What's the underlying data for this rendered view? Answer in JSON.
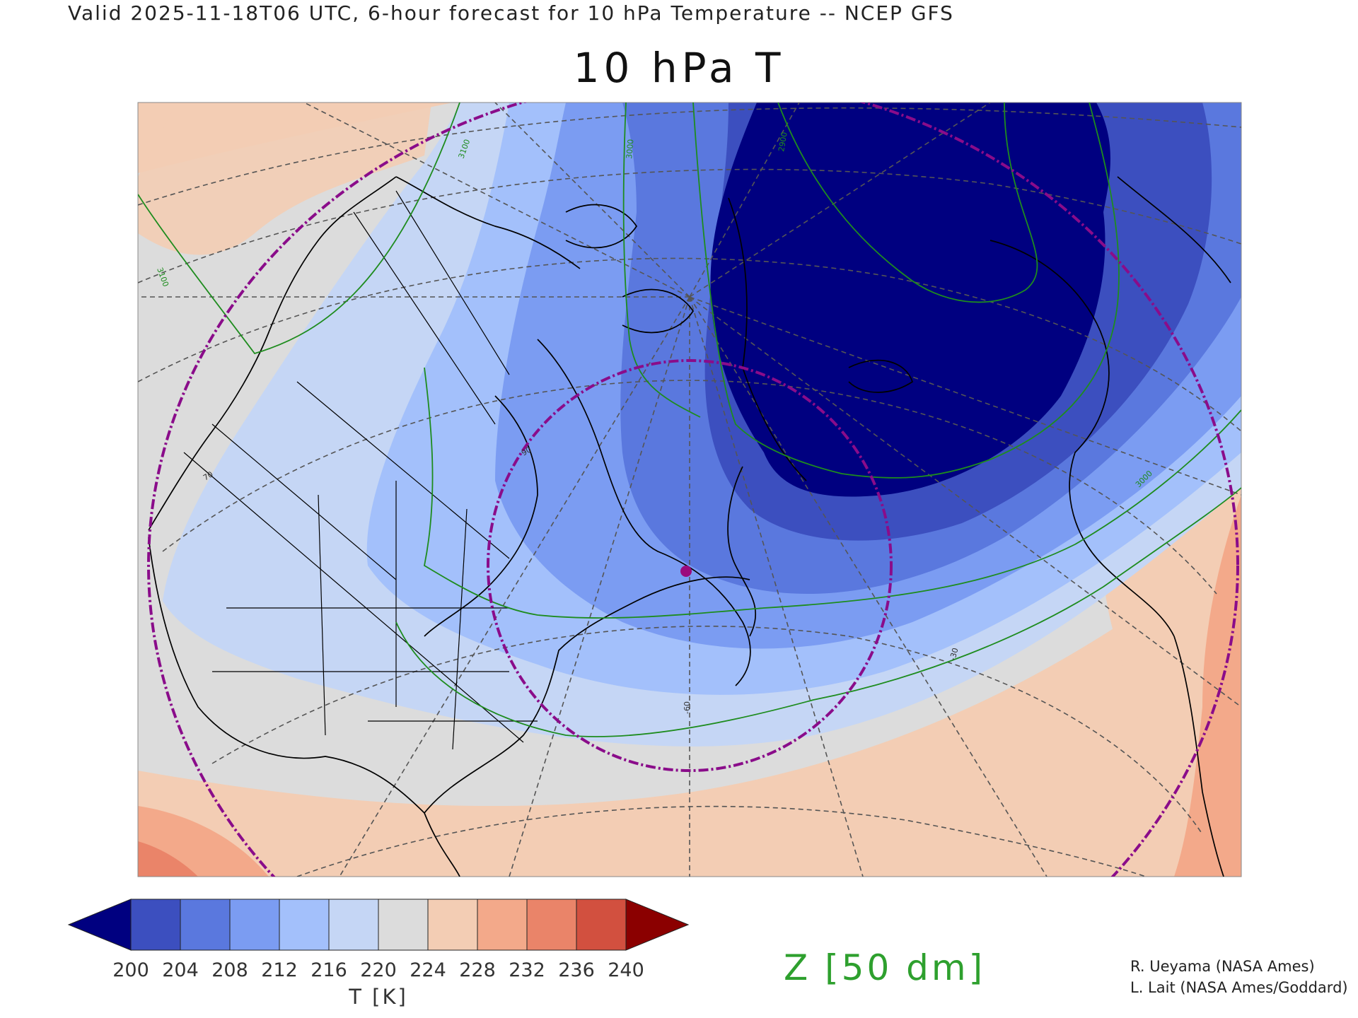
{
  "header": {
    "valid_line": "Valid 2025-11-18T06 UTC, 6-hour forecast for 10 hPa Temperature -- NCEP GFS",
    "title": "10 hPa T"
  },
  "map": {
    "projection": "polar stereographic (North America / North Atlantic)",
    "field": "10 hPa temperature (filled) with 10 hPa geopotential height contours",
    "contour_labels": [
      "3100",
      "3000",
      "2900",
      "3100",
      "3000",
      "-30",
      "-60",
      "70",
      "90"
    ],
    "marker": "purple dot over Labrador/Newfoundland",
    "marker_color": "#9b0a7d",
    "ring_color": "#8a0c8a",
    "contour_color": "#1e8c1e",
    "graticule_color": "#555555",
    "coast_color": "#000000"
  },
  "colorbar": {
    "ticks": [
      "200",
      "204",
      "208",
      "212",
      "216",
      "220",
      "224",
      "228",
      "232",
      "236",
      "240"
    ],
    "colors": [
      "#000080",
      "#3c4fbf",
      "#5a78de",
      "#7b9cf2",
      "#a3c0fb",
      "#c5d6f5",
      "#dcdcdc",
      "#f3cdb4",
      "#f3a98a",
      "#ea8469",
      "#d2503f",
      "#8b0000"
    ],
    "units": "T [K]"
  },
  "legend": {
    "z_label": "Z [50 dm]"
  },
  "credits": {
    "line1": "R. Ueyama (NASA Ames)",
    "line2": "L. Lait (NASA Ames/Goddard)"
  }
}
